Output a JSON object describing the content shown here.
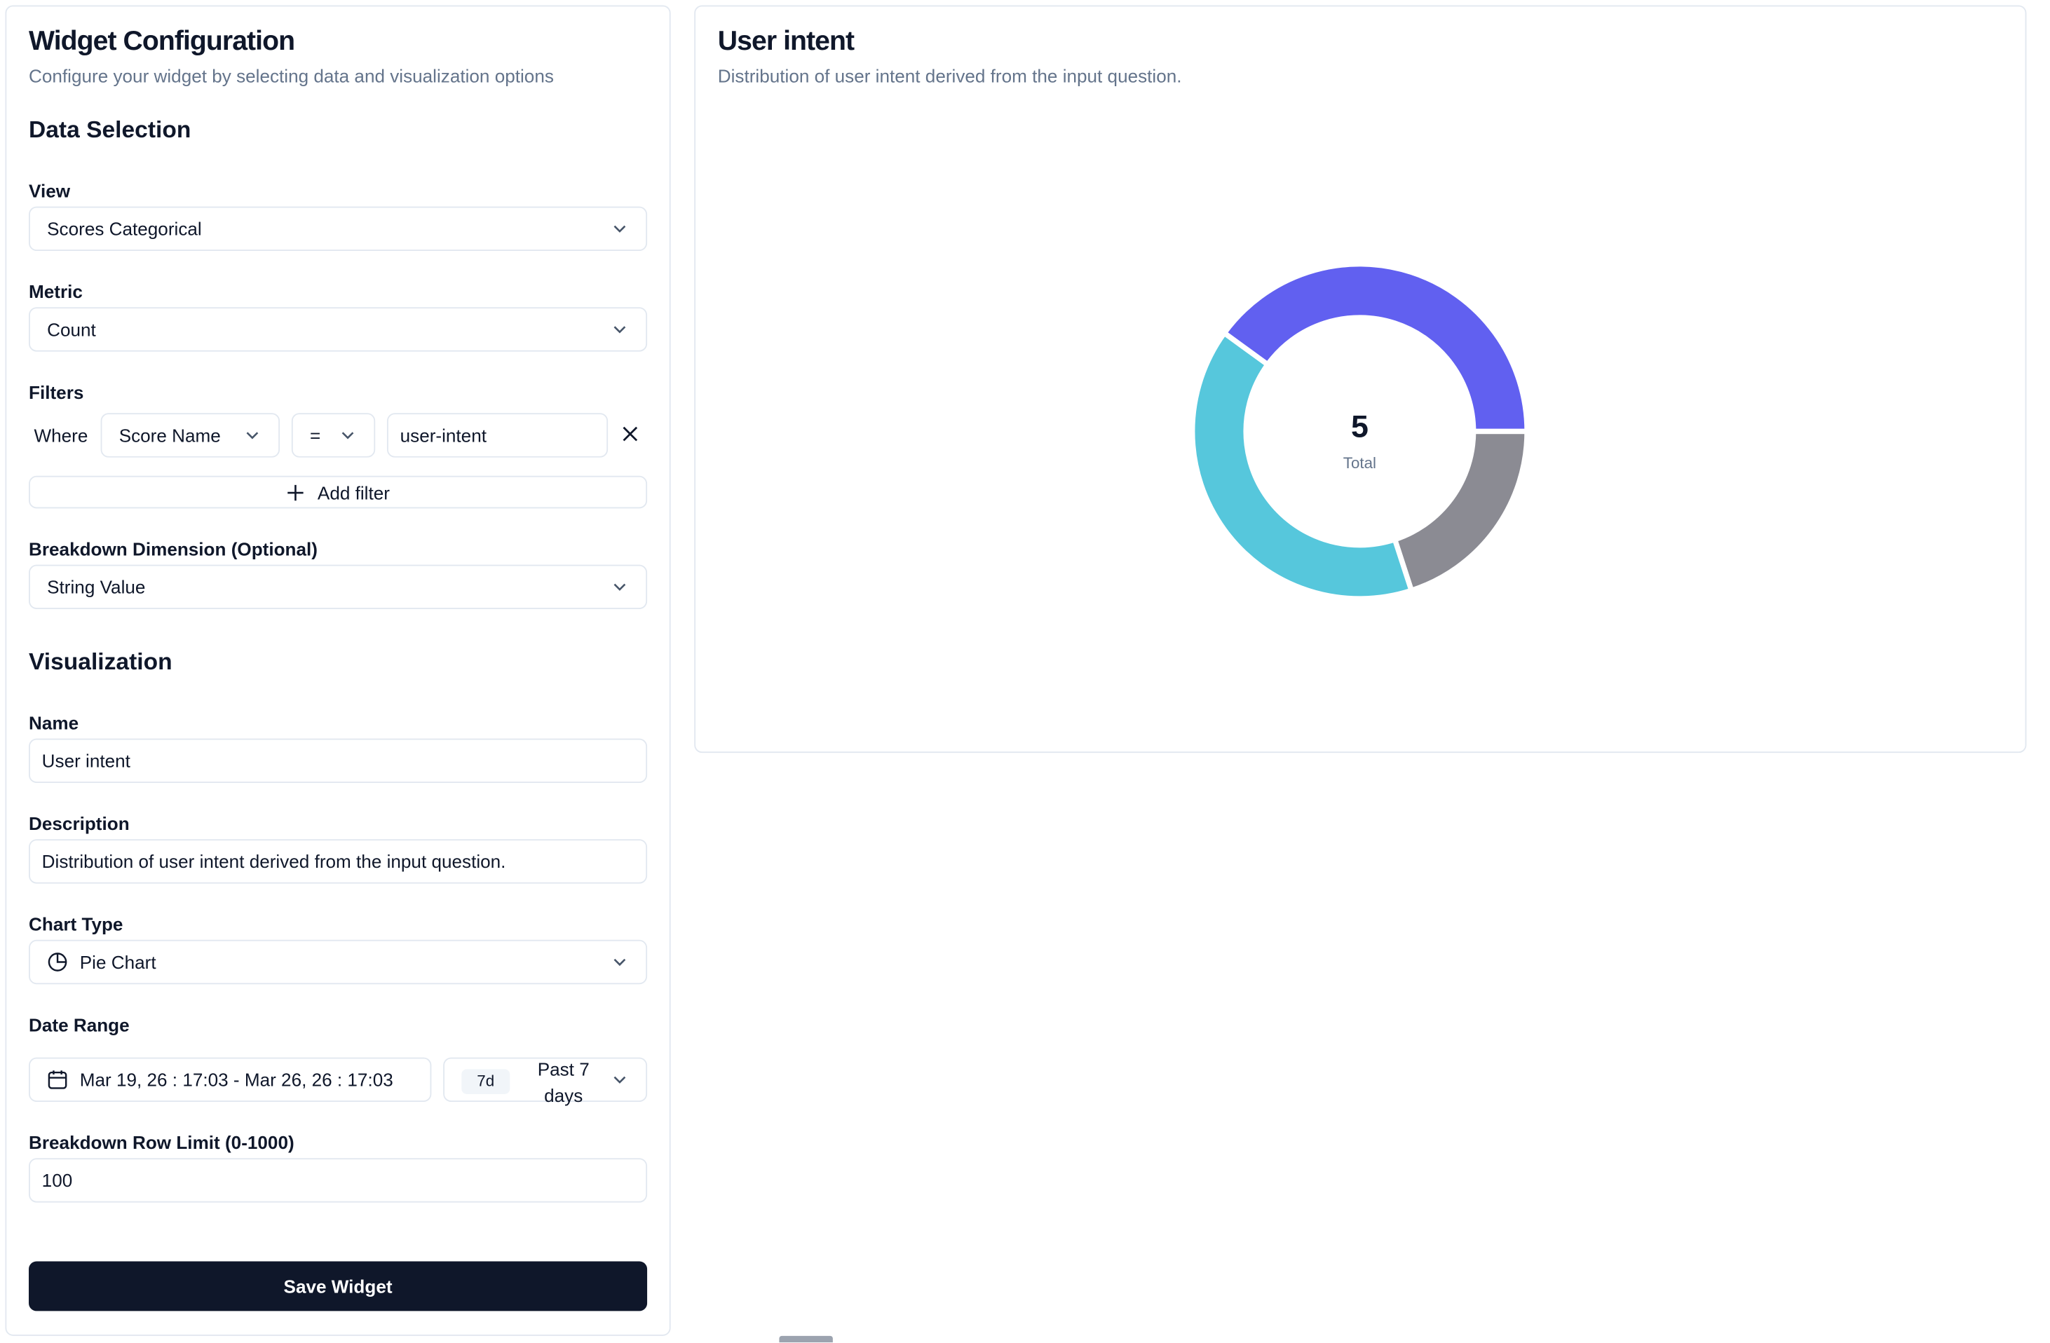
{
  "form": {
    "title": "Widget Configuration",
    "subtitle": "Configure your widget by selecting data and visualization options",
    "data_section": "Data Selection",
    "view_label": "View",
    "view": "Scores Categorical",
    "metric_label": "Metric",
    "metric": "Count",
    "filters_label": "Filters",
    "filter": {
      "where": "Where",
      "column": "Score Name",
      "operator": "=",
      "value": "user-intent"
    },
    "add_filter": "Add filter",
    "breakdown_label": "Breakdown Dimension (Optional)",
    "breakdown": "String Value",
    "viz_section": "Visualization",
    "name_label": "Name",
    "name": "User intent",
    "description_label": "Description",
    "description": "Distribution of user intent derived from the input question.",
    "chart_type_label": "Chart Type",
    "chart_type": "Pie Chart",
    "date_range_label": "Date Range",
    "date_range": "Mar 19, 26 : 17:03 - Mar 26, 26 : 17:03",
    "preset_short": "7d",
    "preset": "Past 7 days",
    "row_limit_label": "Breakdown Row Limit (0-1000)",
    "row_limit": 100,
    "save": "Save Widget"
  },
  "chart_data": {
    "type": "pie",
    "title": "User intent",
    "subtitle": "Distribution of user intent derived from the input question.",
    "values": [
      1,
      2,
      2
    ],
    "colors": [
      "#8b8b93",
      "#56c7dc",
      "#6160f0"
    ],
    "donut": true,
    "total": 5,
    "total_label": "Total"
  }
}
